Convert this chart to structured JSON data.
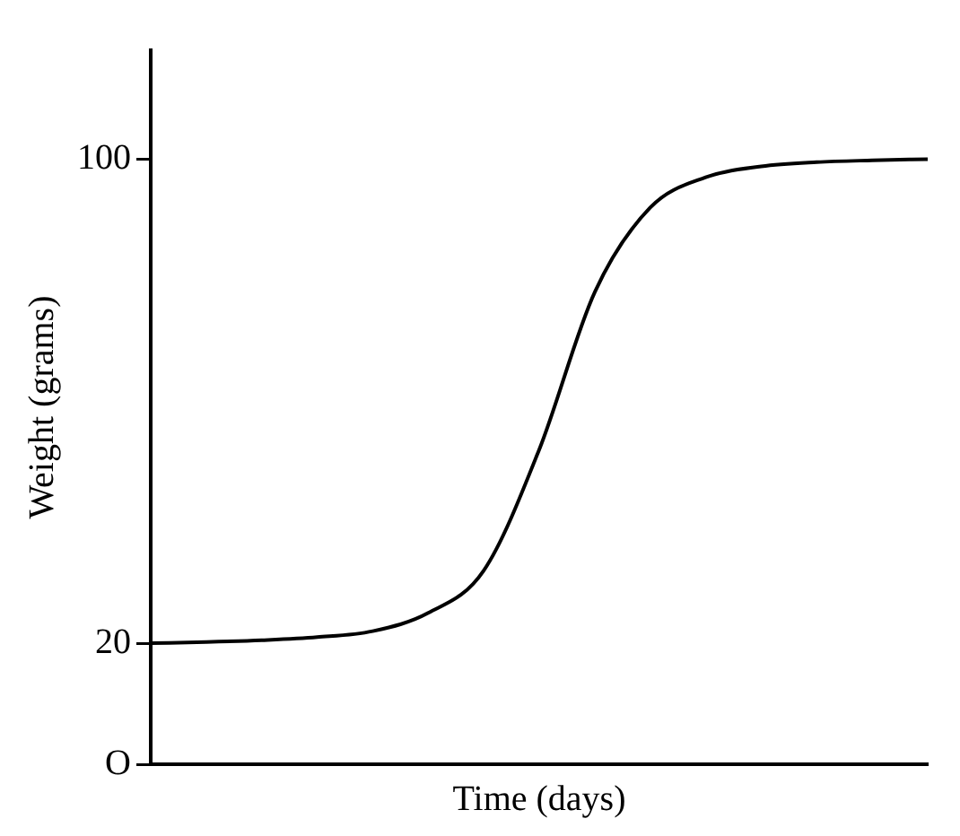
{
  "chart_data": {
    "type": "line",
    "xlabel": "Time (days)",
    "ylabel": "Weight (grams)",
    "categories": [
      null,
      null,
      null,
      null,
      null,
      null,
      null,
      null,
      null,
      null,
      null,
      null,
      null,
      null,
      null
    ],
    "series": [
      {
        "color": "#000000",
        "values": [
          20,
          20.2,
          20.5,
          21,
          22,
          25,
          32,
          52,
          78,
          92,
          97,
          98.8,
          99.5,
          99.8,
          100
        ]
      }
    ],
    "ylim": [
      0,
      118
    ],
    "yticks": [
      {
        "value": 0,
        "label": "O"
      },
      20,
      100
    ],
    "tick_labels": "y",
    "grid": false,
    "legend": false,
    "marker": "none",
    "line_style": "solid"
  }
}
